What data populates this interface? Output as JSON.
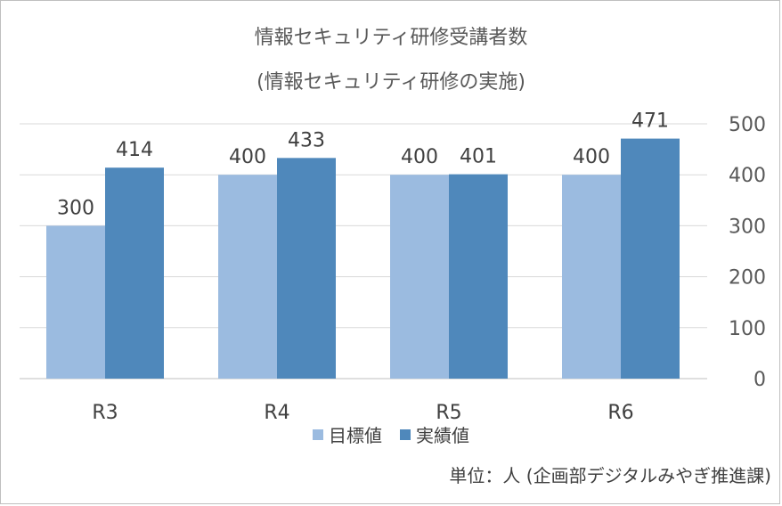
{
  "chart_data": {
    "type": "bar",
    "title": "情報セキュリティ研修受講者数",
    "subtitle": "(情報セキュリティ研修の実施)",
    "categories": [
      "R3",
      "R4",
      "R5",
      "R6"
    ],
    "series": [
      {
        "name": "目標値",
        "values": [
          300,
          400,
          400,
          400
        ],
        "color": "#9bbbe0"
      },
      {
        "name": "実績値",
        "values": [
          414,
          433,
          401,
          471
        ],
        "color": "#4f88bb"
      }
    ],
    "ylim": [
      0,
      500
    ],
    "yticks": [
      0,
      100,
      200,
      300,
      400,
      500
    ],
    "y_axis_side": "right",
    "grid": true,
    "legend": "bottom",
    "data_labels": true
  },
  "footnote": "単位：人 (企画部デジタルみやぎ推進課)"
}
